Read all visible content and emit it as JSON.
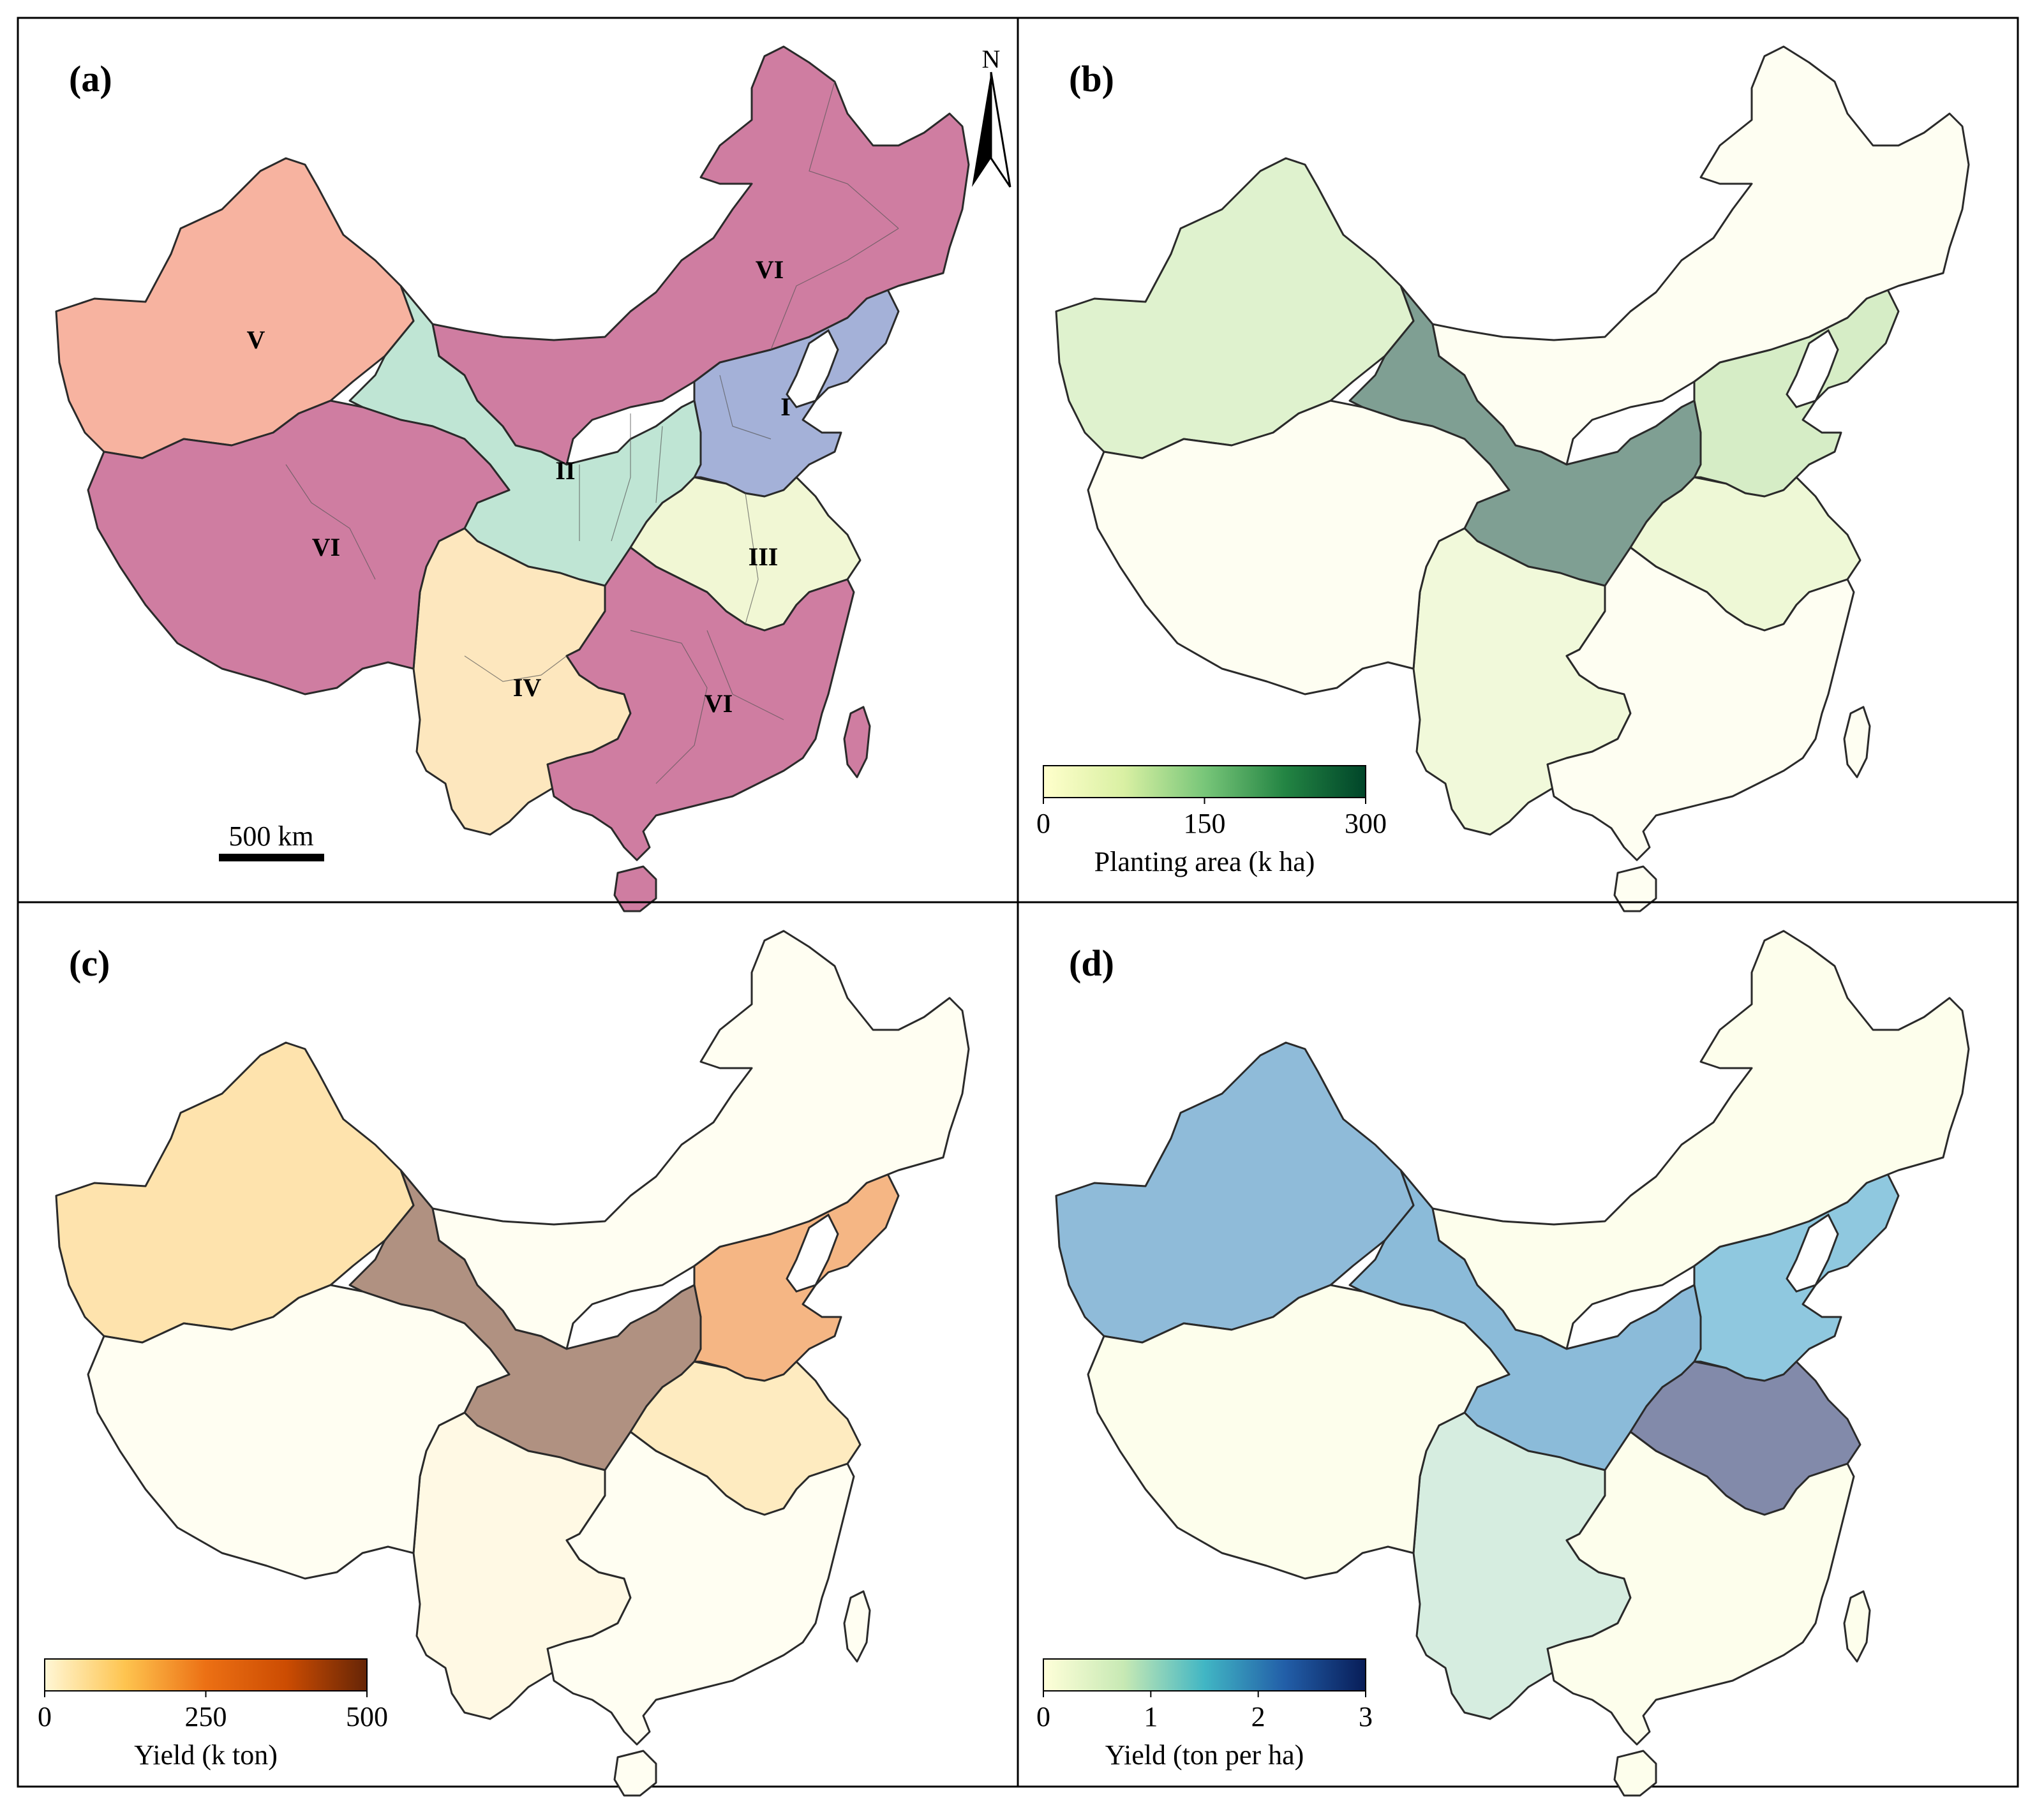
{
  "colors": {
    "a": {
      "I": "#a4b1d8",
      "II": "#bfe5d4",
      "III": "#f1f7d4",
      "IV": "#fde7be",
      "V": "#f7b3a0",
      "VI": "#cf7da1"
    },
    "b": {
      "I": "#d6edc6",
      "II": "#7f9f93",
      "III": "#eef8d6",
      "IV": "#f1f9da",
      "V": "#dff2ce",
      "VI": "#fefef2"
    },
    "c": {
      "I": "#f5b684",
      "II": "#b09181",
      "III": "#feebc0",
      "IV": "#fff9e4",
      "V": "#fee3ad",
      "VI": "#fffef2"
    },
    "d": {
      "I": "#8fc8df",
      "II": "#8bbbd9",
      "III": "#828aaa",
      "IV": "#d6ede0",
      "V": "#8fbbd9",
      "VI": "#fdfeec"
    }
  },
  "panels": [
    {
      "id": "a",
      "label": "(a)",
      "region_labels": [
        {
          "region": "V",
          "text": "V"
        },
        {
          "region": "VI",
          "text": "VI"
        },
        {
          "region": "I",
          "text": "I"
        },
        {
          "region": "II",
          "text": "II"
        },
        {
          "region": "VI",
          "text": "VI"
        },
        {
          "region": "III",
          "text": "III"
        },
        {
          "region": "IV",
          "text": "IV"
        },
        {
          "region": "VI",
          "text": "VI"
        }
      ],
      "north_arrow": "N",
      "scale_bar": "500 km"
    },
    {
      "id": "b",
      "label": "(b)",
      "colorbar": {
        "title": "Planting area (k ha)",
        "ticks": [
          0,
          150,
          300
        ],
        "range": [
          0,
          300
        ],
        "colormap": [
          "#ffffcc",
          "#d9f0a3",
          "#78c679",
          "#238443",
          "#004529"
        ]
      }
    },
    {
      "id": "c",
      "label": "(c)",
      "colorbar": {
        "title": "Yield (k ton)",
        "ticks": [
          0,
          250,
          500
        ],
        "range": [
          0,
          500
        ],
        "colormap": [
          "#fff7d6",
          "#fec44f",
          "#ec7014",
          "#cc4c02",
          "#662506"
        ]
      }
    },
    {
      "id": "d",
      "label": "(d)",
      "colorbar": {
        "title": "Yield (ton per ha)",
        "ticks": [
          0,
          1,
          2,
          3
        ],
        "range": [
          0,
          3
        ],
        "colormap": [
          "#ffffd9",
          "#c7e9b4",
          "#41b6c4",
          "#225ea8",
          "#081d58"
        ]
      }
    }
  ]
}
